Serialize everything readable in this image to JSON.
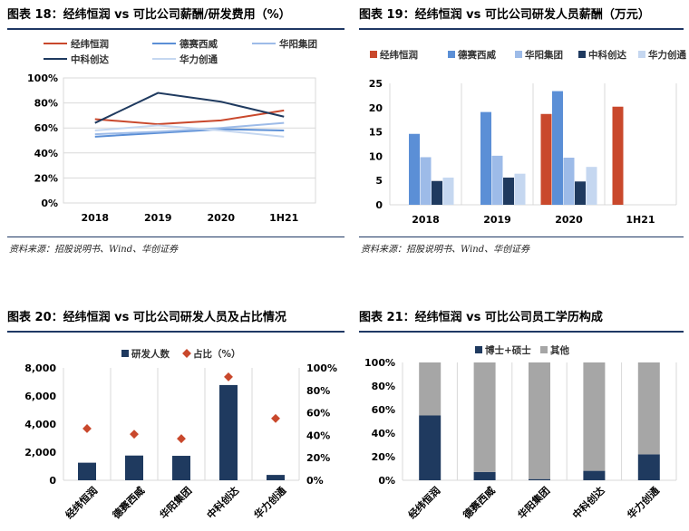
{
  "colors": {
    "title_rule": "#1f3864",
    "c1": "#c9482c",
    "c2": "#5b8fd6",
    "c3": "#9dbbe8",
    "c4": "#1f3a5f",
    "c5": "#c5d7f0",
    "gray": "#a6a6a6",
    "navy": "#1f3a5f",
    "orange": "#c9482c"
  },
  "charts": [
    {
      "title": "图表 18：经纬恒润 vs 可比公司薪酬/研发费用（%）",
      "source": "资料来源：招股说明书、Wind、华创证券"
    },
    {
      "title": "图表 19：经纬恒润 vs 可比公司研发人员薪酬（万元）",
      "source": "资料来源：招股说明书、Wind、华创证券"
    },
    {
      "title": "图表 20：经纬恒润 vs 可比公司研发人员及占比情况",
      "source": ""
    },
    {
      "title": "图表 21：经纬恒润 vs 可比公司员工学历构成",
      "source": ""
    }
  ],
  "chart_data": [
    {
      "type": "line",
      "x": [
        "2018",
        "2019",
        "2020",
        "1H21"
      ],
      "ylim": [
        0,
        100
      ],
      "yticks": [
        "0%",
        "20%",
        "40%",
        "60%",
        "80%",
        "100%"
      ],
      "legend_position": "top",
      "grid": true,
      "series": [
        {
          "name": "经纬恒润",
          "color": "#c9482c",
          "values": [
            67,
            63,
            66,
            74
          ]
        },
        {
          "name": "德赛西威",
          "color": "#5b8fd6",
          "values": [
            53,
            56,
            59,
            58
          ]
        },
        {
          "name": "华阳集团",
          "color": "#9dbbe8",
          "values": [
            55,
            57,
            60,
            64
          ]
        },
        {
          "name": "中科创达",
          "color": "#1f3a5f",
          "values": [
            64,
            88,
            81,
            69
          ]
        },
        {
          "name": "华力创通",
          "color": "#c5d7f0",
          "values": [
            58,
            62,
            58,
            53
          ]
        }
      ]
    },
    {
      "type": "bar",
      "categories": [
        "2018",
        "2019",
        "2020",
        "1H21"
      ],
      "ylim": [
        0,
        25
      ],
      "yticks": [
        "0",
        "5",
        "10",
        "15",
        "20",
        "25"
      ],
      "legend_position": "top",
      "grid": true,
      "series": [
        {
          "name": "经纬恒润",
          "color": "#c9482c",
          "values": [
            null,
            null,
            18.7,
            20.2
          ]
        },
        {
          "name": "德赛西威",
          "color": "#5b8fd6",
          "values": [
            14.6,
            19.1,
            23.4,
            null
          ]
        },
        {
          "name": "华阳集团",
          "color": "#9dbbe8",
          "values": [
            9.8,
            10.1,
            9.7,
            null
          ]
        },
        {
          "name": "中科创达",
          "color": "#1f3a5f",
          "values": [
            4.9,
            5.6,
            4.8,
            null
          ]
        },
        {
          "name": "华力创通",
          "color": "#c5d7f0",
          "values": [
            5.6,
            6.4,
            7.8,
            null
          ]
        }
      ]
    },
    {
      "type": "bar",
      "categories": [
        "经纬恒润",
        "德赛西威",
        "华阳集团",
        "中科创达",
        "华力创通"
      ],
      "ylim": [
        0,
        8000
      ],
      "yticks": [
        "0",
        "2,000",
        "4,000",
        "6,000",
        "8,000"
      ],
      "y2lim": [
        0,
        100
      ],
      "y2ticks": [
        "0%",
        "20%",
        "40%",
        "60%",
        "80%",
        "100%"
      ],
      "legend_position": "top",
      "grid": true,
      "series": [
        {
          "name": "研发人数",
          "color": "#1f3a5f",
          "type": "bar",
          "values": [
            1250,
            1760,
            1740,
            6780,
            380
          ]
        },
        {
          "name": "占比（%）",
          "color": "#c9482c",
          "type": "scatter",
          "axis": "right",
          "values": [
            46,
            41,
            37,
            92,
            55
          ]
        }
      ]
    },
    {
      "type": "bar",
      "stacked": true,
      "categories": [
        "经纬恒润",
        "德赛西威",
        "华阳集团",
        "中科创达",
        "华力创通"
      ],
      "ylim": [
        0,
        100
      ],
      "yticks": [
        "0%",
        "20%",
        "40%",
        "60%",
        "80%",
        "100%"
      ],
      "legend_position": "top",
      "grid": true,
      "series": [
        {
          "name": "博士+硕士",
          "color": "#1f3a5f",
          "values": [
            55,
            7,
            1,
            8,
            22
          ]
        },
        {
          "name": "其他",
          "color": "#a6a6a6",
          "values": [
            45,
            93,
            99,
            92,
            78
          ]
        }
      ]
    }
  ]
}
